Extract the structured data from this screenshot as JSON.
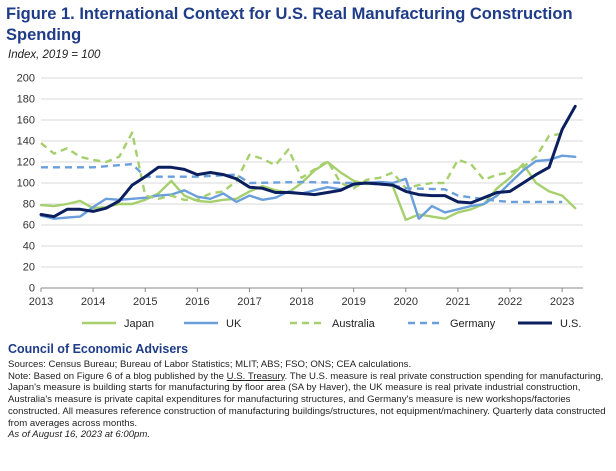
{
  "title": "Figure 1. International Context for U.S. Real Manufacturing Construction Spending",
  "subtitle": "Index, 2019 = 100",
  "org": "Council of Economic Advisers",
  "sources": "Sources: Census Bureau; Bureau of Labor Statistics; MLIT; ABS; FSO; ONS; CEA calculations.",
  "note_pre": "Note: Based on Figure 6 of a blog published by the ",
  "note_link": "U.S. Treasury",
  "note_post": ". The U.S. measure is real private construction spending for manufacturing, Japan's measure is building starts for manufacturing by floor area (SA by Haver), the UK measure is real private industrial construction, Australia's measure is private capital expenditures for manufacturing structures, and Germany's measure is new workshops/factories constructed. All measures reference construction of manufacturing buildings/structures, not equipment/machinery. Quarterly data constructed from averages across months.",
  "date": "As of August 16, 2023 at 6:00pm.",
  "chart_data": {
    "type": "line",
    "title": "Figure 1. International Context for U.S. Real Manufacturing Construction Spending",
    "ylabel": "Index, 2019 = 100",
    "ylim": [
      0,
      200
    ],
    "yticks": [
      0,
      20,
      40,
      60,
      80,
      100,
      120,
      140,
      160,
      180,
      200
    ],
    "xlim": [
      2013,
      2023.4
    ],
    "xticks": [
      2013,
      2014,
      2015,
      2016,
      2017,
      2018,
      2019,
      2020,
      2021,
      2022,
      2023
    ],
    "grid": true,
    "legend": "bottom",
    "series": [
      {
        "name": "Japan",
        "color": "#a6cf6d",
        "dash": "solid",
        "points": [
          [
            2013,
            79
          ],
          [
            2013.25,
            78
          ],
          [
            2013.5,
            80
          ],
          [
            2013.75,
            83
          ],
          [
            2014,
            76
          ],
          [
            2014.25,
            77
          ],
          [
            2014.5,
            80
          ],
          [
            2014.75,
            80
          ],
          [
            2015,
            84
          ],
          [
            2015.25,
            90
          ],
          [
            2015.5,
            102
          ],
          [
            2015.75,
            88
          ],
          [
            2016,
            83
          ],
          [
            2016.25,
            82
          ],
          [
            2016.5,
            84
          ],
          [
            2016.75,
            85
          ],
          [
            2017,
            92
          ],
          [
            2017.25,
            97
          ],
          [
            2017.5,
            93
          ],
          [
            2017.75,
            91
          ],
          [
            2018,
            100
          ],
          [
            2018.25,
            112
          ],
          [
            2018.5,
            120
          ],
          [
            2018.75,
            110
          ],
          [
            2019,
            102
          ],
          [
            2019.25,
            99
          ],
          [
            2019.5,
            100
          ],
          [
            2019.75,
            97
          ],
          [
            2020,
            65
          ],
          [
            2020.25,
            70
          ],
          [
            2020.5,
            68
          ],
          [
            2020.75,
            66
          ],
          [
            2021,
            72
          ],
          [
            2021.25,
            75
          ],
          [
            2021.5,
            80
          ],
          [
            2021.75,
            95
          ],
          [
            2022,
            105
          ],
          [
            2022.25,
            118
          ],
          [
            2022.5,
            100
          ],
          [
            2022.75,
            92
          ],
          [
            2023,
            88
          ],
          [
            2023.25,
            76
          ]
        ]
      },
      {
        "name": "UK",
        "color": "#6a9fdc",
        "dash": "solid",
        "points": [
          [
            2013,
            69
          ],
          [
            2013.25,
            66
          ],
          [
            2013.5,
            67
          ],
          [
            2013.75,
            68
          ],
          [
            2014,
            77
          ],
          [
            2014.25,
            85
          ],
          [
            2014.5,
            84
          ],
          [
            2014.75,
            85
          ],
          [
            2015,
            86
          ],
          [
            2015.25,
            88
          ],
          [
            2015.5,
            89
          ],
          [
            2015.75,
            93
          ],
          [
            2016,
            87
          ],
          [
            2016.25,
            85
          ],
          [
            2016.5,
            90
          ],
          [
            2016.75,
            82
          ],
          [
            2017,
            88
          ],
          [
            2017.25,
            84
          ],
          [
            2017.5,
            86
          ],
          [
            2017.75,
            92
          ],
          [
            2018,
            90
          ],
          [
            2018.25,
            93
          ],
          [
            2018.5,
            96
          ],
          [
            2018.75,
            94
          ],
          [
            2019,
            98
          ],
          [
            2019.25,
            100
          ],
          [
            2019.5,
            101
          ],
          [
            2019.75,
            100
          ],
          [
            2020,
            104
          ],
          [
            2020.25,
            66
          ],
          [
            2020.5,
            78
          ],
          [
            2020.75,
            72
          ],
          [
            2021,
            75
          ],
          [
            2021.25,
            78
          ],
          [
            2021.5,
            80
          ],
          [
            2021.75,
            88
          ],
          [
            2022,
            100
          ],
          [
            2022.25,
            112
          ],
          [
            2022.5,
            121
          ],
          [
            2022.75,
            122
          ],
          [
            2023,
            126
          ],
          [
            2023.25,
            125
          ]
        ]
      },
      {
        "name": "Australia",
        "color": "#a6cf6d",
        "dash": "dashed",
        "points": [
          [
            2013,
            138
          ],
          [
            2013.25,
            128
          ],
          [
            2013.5,
            133
          ],
          [
            2013.75,
            125
          ],
          [
            2014,
            122
          ],
          [
            2014.25,
            120
          ],
          [
            2014.5,
            125
          ],
          [
            2014.75,
            148
          ],
          [
            2015,
            88
          ],
          [
            2015.25,
            85
          ],
          [
            2015.5,
            88
          ],
          [
            2015.75,
            84
          ],
          [
            2016,
            84
          ],
          [
            2016.25,
            90
          ],
          [
            2016.5,
            92
          ],
          [
            2016.75,
            102
          ],
          [
            2017,
            127
          ],
          [
            2017.25,
            123
          ],
          [
            2017.5,
            117
          ],
          [
            2017.75,
            132
          ],
          [
            2018,
            105
          ],
          [
            2018.25,
            113
          ],
          [
            2018.5,
            121
          ],
          [
            2018.75,
            100
          ],
          [
            2019,
            95
          ],
          [
            2019.25,
            103
          ],
          [
            2019.5,
            105
          ],
          [
            2019.75,
            110
          ],
          [
            2020,
            95
          ],
          [
            2020.25,
            98
          ],
          [
            2020.5,
            100
          ],
          [
            2020.75,
            100
          ],
          [
            2021,
            122
          ],
          [
            2021.25,
            118
          ],
          [
            2021.5,
            103
          ],
          [
            2021.75,
            108
          ],
          [
            2022,
            110
          ],
          [
            2022.25,
            115
          ],
          [
            2022.5,
            125
          ],
          [
            2022.75,
            145
          ],
          [
            2023,
            147
          ]
        ]
      },
      {
        "name": "Germany",
        "color": "#6a9fdc",
        "dash": "dashed",
        "points": [
          [
            2013,
            115
          ],
          [
            2014,
            115
          ],
          [
            2014.75,
            118
          ],
          [
            2015,
            106
          ],
          [
            2016,
            106
          ],
          [
            2016.75,
            108
          ],
          [
            2017,
            100
          ],
          [
            2018,
            101
          ],
          [
            2019,
            100
          ],
          [
            2019.75,
            98
          ],
          [
            2020,
            95
          ],
          [
            2020.75,
            94
          ],
          [
            2021,
            88
          ],
          [
            2021.75,
            83
          ],
          [
            2022,
            82
          ],
          [
            2023,
            82
          ]
        ]
      },
      {
        "name": "U.S.",
        "color": "#0b1f5e",
        "dash": "solid",
        "points": [
          [
            2013,
            70
          ],
          [
            2013.25,
            68
          ],
          [
            2013.5,
            75
          ],
          [
            2013.75,
            75
          ],
          [
            2014,
            73
          ],
          [
            2014.25,
            76
          ],
          [
            2014.5,
            83
          ],
          [
            2014.75,
            98
          ],
          [
            2015,
            106
          ],
          [
            2015.25,
            115
          ],
          [
            2015.5,
            115
          ],
          [
            2015.75,
            113
          ],
          [
            2016,
            108
          ],
          [
            2016.25,
            110
          ],
          [
            2016.5,
            108
          ],
          [
            2016.75,
            104
          ],
          [
            2017,
            96
          ],
          [
            2017.25,
            95
          ],
          [
            2017.5,
            91
          ],
          [
            2017.75,
            91
          ],
          [
            2018,
            90
          ],
          [
            2018.25,
            89
          ],
          [
            2018.5,
            91
          ],
          [
            2018.75,
            93
          ],
          [
            2019,
            99
          ],
          [
            2019.25,
            100
          ],
          [
            2019.5,
            99
          ],
          [
            2019.75,
            98
          ],
          [
            2020,
            92
          ],
          [
            2020.25,
            89
          ],
          [
            2020.5,
            88
          ],
          [
            2020.75,
            88
          ],
          [
            2021,
            82
          ],
          [
            2021.25,
            81
          ],
          [
            2021.5,
            86
          ],
          [
            2021.75,
            91
          ],
          [
            2022,
            92
          ],
          [
            2022.25,
            100
          ],
          [
            2022.5,
            108
          ],
          [
            2022.75,
            115
          ],
          [
            2023,
            151
          ],
          [
            2023.25,
            173
          ]
        ]
      }
    ]
  }
}
